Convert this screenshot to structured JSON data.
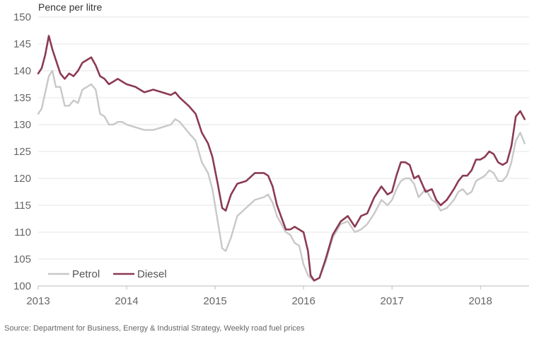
{
  "chart_data": {
    "type": "line",
    "title": "",
    "ylabel": "Pence per litre",
    "xlabel": "",
    "source": "Source: Department for Business, Energy & Industrial Strategy, Weekly road fuel prices",
    "ylim": [
      100,
      150
    ],
    "xlim": [
      2013.0,
      2018.55
    ],
    "y_ticks": [
      "100",
      "105",
      "110",
      "115",
      "120",
      "125",
      "130",
      "135",
      "140",
      "145",
      "150"
    ],
    "x_ticks": [
      "2013",
      "2014",
      "2015",
      "2016",
      "2017",
      "2018"
    ],
    "grid": "horizontal",
    "legend": "bottom-left",
    "series": [
      {
        "name": "Petrol",
        "color": "#c8c8c8",
        "x": [
          2013.0,
          2013.04,
          2013.08,
          2013.12,
          2013.16,
          2013.2,
          2013.25,
          2013.3,
          2013.35,
          2013.4,
          2013.45,
          2013.5,
          2013.55,
          2013.6,
          2013.65,
          2013.7,
          2013.75,
          2013.8,
          2013.85,
          2013.9,
          2013.95,
          2014.0,
          2014.1,
          2014.2,
          2014.3,
          2014.4,
          2014.5,
          2014.55,
          2014.6,
          2014.7,
          2014.78,
          2014.85,
          2014.92,
          2014.97,
          2015.03,
          2015.08,
          2015.12,
          2015.18,
          2015.25,
          2015.35,
          2015.45,
          2015.55,
          2015.6,
          2015.65,
          2015.7,
          2015.8,
          2015.85,
          2015.9,
          2015.95,
          2016.0,
          2016.05,
          2016.08,
          2016.12,
          2016.18,
          2016.25,
          2016.33,
          2016.42,
          2016.5,
          2016.58,
          2016.65,
          2016.72,
          2016.8,
          2016.88,
          2016.95,
          2017.0,
          2017.05,
          2017.1,
          2017.15,
          2017.2,
          2017.25,
          2017.3,
          2017.38,
          2017.45,
          2017.5,
          2017.55,
          2017.62,
          2017.7,
          2017.75,
          2017.8,
          2017.85,
          2017.9,
          2017.95,
          2018.0,
          2018.05,
          2018.1,
          2018.15,
          2018.2,
          2018.25,
          2018.3,
          2018.35,
          2018.4,
          2018.45,
          2018.5
        ],
        "y": [
          132.0,
          133.0,
          136.0,
          139.0,
          140.0,
          137.0,
          137.0,
          133.5,
          133.5,
          134.5,
          134.0,
          136.5,
          137.0,
          137.5,
          136.5,
          132.0,
          131.5,
          130.0,
          130.0,
          130.5,
          130.5,
          130.0,
          129.5,
          129.0,
          129.0,
          129.5,
          130.0,
          131.0,
          130.5,
          128.5,
          127.0,
          123.0,
          121.0,
          118.0,
          112.0,
          107.0,
          106.5,
          109.0,
          113.0,
          114.5,
          116.0,
          116.5,
          117.0,
          115.5,
          113.0,
          110.0,
          109.5,
          108.0,
          107.5,
          104.0,
          102.0,
          101.5,
          101.0,
          101.5,
          104.5,
          109.0,
          111.5,
          112.0,
          110.0,
          110.5,
          111.5,
          113.5,
          116.0,
          115.0,
          116.0,
          118.0,
          119.5,
          120.0,
          120.0,
          119.0,
          116.5,
          118.0,
          116.0,
          115.5,
          114.0,
          114.5,
          116.0,
          117.5,
          118.0,
          117.0,
          117.5,
          119.5,
          120.0,
          120.5,
          121.5,
          121.0,
          119.5,
          119.5,
          120.5,
          123.0,
          127.0,
          128.5,
          126.5
        ]
      },
      {
        "name": "Diesel",
        "color": "#8b3a52",
        "x": [
          2013.0,
          2013.04,
          2013.08,
          2013.12,
          2013.16,
          2013.2,
          2013.25,
          2013.3,
          2013.35,
          2013.4,
          2013.45,
          2013.5,
          2013.55,
          2013.6,
          2013.65,
          2013.7,
          2013.75,
          2013.8,
          2013.85,
          2013.9,
          2013.95,
          2014.0,
          2014.1,
          2014.2,
          2014.3,
          2014.4,
          2014.5,
          2014.55,
          2014.6,
          2014.7,
          2014.78,
          2014.85,
          2014.92,
          2014.97,
          2015.03,
          2015.08,
          2015.12,
          2015.18,
          2015.25,
          2015.35,
          2015.45,
          2015.55,
          2015.6,
          2015.65,
          2015.7,
          2015.8,
          2015.85,
          2015.9,
          2015.95,
          2016.0,
          2016.05,
          2016.08,
          2016.12,
          2016.18,
          2016.25,
          2016.33,
          2016.42,
          2016.5,
          2016.58,
          2016.65,
          2016.72,
          2016.8,
          2016.88,
          2016.95,
          2017.0,
          2017.05,
          2017.1,
          2017.15,
          2017.2,
          2017.25,
          2017.3,
          2017.38,
          2017.45,
          2017.5,
          2017.55,
          2017.62,
          2017.7,
          2017.75,
          2017.8,
          2017.85,
          2017.9,
          2017.95,
          2018.0,
          2018.05,
          2018.1,
          2018.15,
          2018.2,
          2018.25,
          2018.3,
          2018.35,
          2018.4,
          2018.45,
          2018.5
        ],
        "y": [
          139.5,
          140.5,
          143.0,
          146.5,
          144.0,
          142.0,
          139.5,
          138.5,
          139.5,
          139.0,
          140.0,
          141.5,
          142.0,
          142.5,
          141.0,
          139.0,
          138.5,
          137.5,
          138.0,
          138.5,
          138.0,
          137.5,
          137.0,
          136.0,
          136.5,
          136.0,
          135.5,
          136.0,
          135.0,
          133.5,
          132.0,
          128.5,
          126.5,
          124.0,
          119.0,
          114.5,
          114.0,
          117.0,
          119.0,
          119.5,
          121.0,
          121.0,
          120.5,
          118.5,
          115.0,
          110.5,
          110.5,
          111.0,
          110.5,
          110.0,
          106.5,
          102.0,
          101.0,
          101.5,
          105.0,
          109.5,
          112.0,
          113.0,
          111.0,
          113.0,
          113.5,
          116.5,
          118.5,
          117.0,
          117.5,
          120.5,
          123.0,
          123.0,
          122.5,
          120.0,
          120.5,
          117.5,
          118.0,
          116.0,
          115.0,
          116.0,
          118.0,
          119.5,
          120.5,
          120.5,
          121.5,
          123.5,
          123.5,
          124.0,
          125.0,
          124.5,
          123.0,
          122.5,
          123.0,
          126.0,
          131.5,
          132.5,
          131.0
        ]
      }
    ]
  }
}
